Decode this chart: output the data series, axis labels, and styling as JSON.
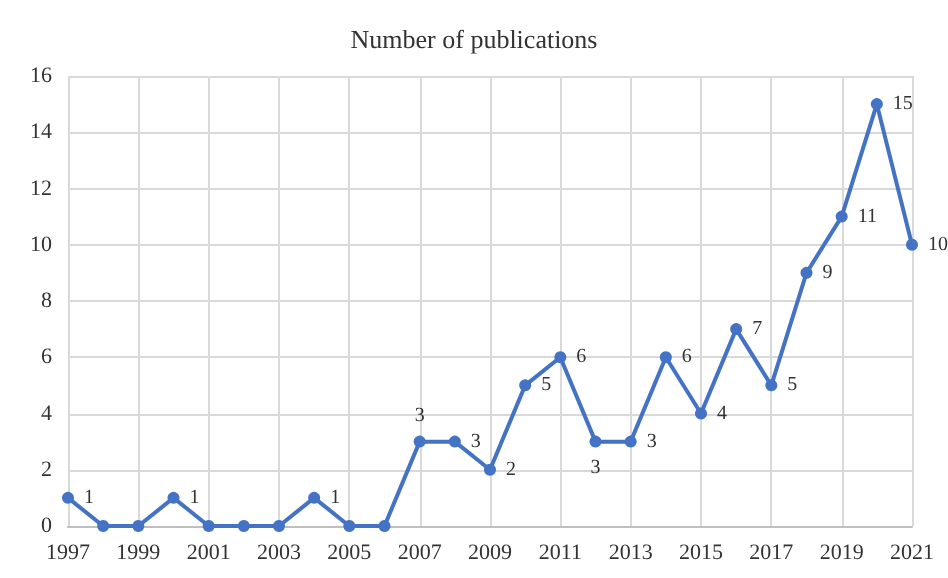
{
  "chart_data": {
    "type": "line",
    "title": "Number of publications",
    "categories": [
      "1997",
      null,
      "1999",
      null,
      "2001",
      null,
      "2003",
      null,
      "2005",
      null,
      "2007",
      null,
      "2009",
      null,
      "2011",
      null,
      "2013",
      null,
      "2015",
      null,
      "2017",
      null,
      "2019",
      null,
      "2021"
    ],
    "series": [
      {
        "color": "#4472c4",
        "values": [
          1,
          0,
          0,
          1,
          0,
          0,
          0,
          1,
          0,
          0,
          3,
          3,
          2,
          5,
          6,
          3,
          3,
          6,
          4,
          7,
          5,
          9,
          11,
          15,
          10
        ],
        "value_labels": [
          "1",
          null,
          null,
          "1",
          null,
          null,
          null,
          "1",
          null,
          null,
          "3",
          "3",
          "2",
          "5",
          "6",
          "3",
          "3",
          "6",
          "4",
          "7",
          "5",
          "9",
          "11",
          "15",
          "10"
        ]
      }
    ],
    "ylim": [
      0,
      16
    ],
    "yticks": [
      0,
      2,
      4,
      6,
      8,
      10,
      12,
      14,
      16
    ],
    "grid": true,
    "marker": "circle",
    "line_style": "solid"
  }
}
